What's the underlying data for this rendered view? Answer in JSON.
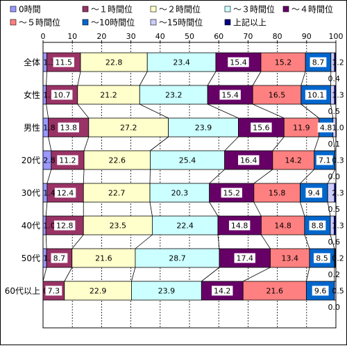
{
  "chart_data": {
    "type": "bar",
    "orientation": "horizontal",
    "stacked": true,
    "percent": true,
    "title": "",
    "xlabel": "",
    "ylabel": "",
    "xlim": [
      0,
      100
    ],
    "x_ticks": [
      "0",
      "10",
      "20",
      "30",
      "40",
      "50",
      "60",
      "70",
      "80",
      "90",
      "100"
    ],
    "grid": true,
    "legend_position": "top",
    "categories": [
      "全体",
      "女性",
      "男性",
      "20代",
      "30代",
      "40代",
      "50代",
      "60代以上"
    ],
    "series": [
      {
        "name": "0時間",
        "color": "#9999ff",
        "values": [
          1.3,
          1.1,
          1.8,
          2.8,
          1.4,
          1.0,
          1.2,
          0.0
        ],
        "labels": [
          "1.3",
          "1.1",
          "1.8",
          "2.8",
          "1.4",
          "1.0",
          "1.2",
          "0.0"
        ]
      },
      {
        "name": "～１時間位",
        "color": "#993366",
        "values": [
          11.5,
          10.7,
          13.8,
          11.2,
          12.4,
          12.8,
          8.7,
          7.3
        ],
        "labels": [
          "11.5",
          "10.7",
          "13.8",
          "11.2",
          "12.4",
          "12.8",
          "8.7",
          "7.3"
        ]
      },
      {
        "name": "～２時間位",
        "color": "#ffffcc",
        "values": [
          22.8,
          21.2,
          27.2,
          22.6,
          22.7,
          23.5,
          21.6,
          22.9
        ],
        "labels": [
          "22.8",
          "21.2",
          "27.2",
          "22.6",
          "22.7",
          "23.5",
          "21.6",
          "22.9"
        ]
      },
      {
        "name": "～３時間位",
        "color": "#ccffff",
        "values": [
          23.4,
          23.2,
          23.9,
          25.4,
          20.3,
          22.4,
          28.7,
          23.9
        ],
        "labels": [
          "23.4",
          "23.2",
          "23.9",
          "25.4",
          "20.3",
          "22.4",
          "28.7",
          "23.9"
        ]
      },
      {
        "name": "～４時間位",
        "color": "#660066",
        "values": [
          15.4,
          15.4,
          15.6,
          16.4,
          15.2,
          14.8,
          17.4,
          14.2
        ],
        "labels": [
          "15.4",
          "15.4",
          "15.6",
          "16.4",
          "15.2",
          "14.8",
          "17.4",
          "14.2"
        ]
      },
      {
        "name": "～５時間位",
        "color": "#ff8080",
        "values": [
          15.2,
          16.5,
          11.9,
          14.2,
          15.8,
          14.8,
          13.4,
          21.6
        ],
        "labels": [
          "15.2",
          "16.5",
          "11.9",
          "14.2",
          "15.8",
          "14.8",
          "13.4",
          "21.6"
        ]
      },
      {
        "name": "～10時間位",
        "color": "#0066cc",
        "values": [
          8.7,
          10.1,
          4.8,
          7.1,
          9.4,
          8.8,
          8.5,
          9.6
        ],
        "labels": [
          "8.7",
          "10.1",
          "4.8",
          "7.1",
          "9.4",
          "8.8",
          "8.5",
          "9.6"
        ]
      },
      {
        "name": "～15時間位",
        "color": "#ccccff",
        "values": [
          1.2,
          1.3,
          1.0,
          0.3,
          2.3,
          1.3,
          0.2,
          0.5
        ],
        "labels": [
          "1.2",
          "1.3",
          "1.0",
          "0.3",
          "2.3",
          "1.3",
          "0.2",
          "0.5"
        ]
      },
      {
        "name": "上記以上",
        "color": "#000080",
        "values": [
          0.4,
          0.5,
          0.1,
          0.0,
          0.5,
          0.6,
          0.2,
          0.0
        ],
        "labels": [
          "0.4",
          "0.5",
          "0.1",
          "0.0",
          "0.5",
          "0.6",
          "0.2",
          "0.0"
        ]
      }
    ]
  }
}
